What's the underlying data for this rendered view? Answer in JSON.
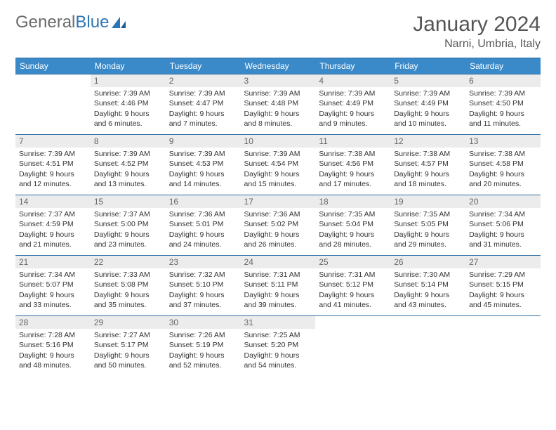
{
  "logo": {
    "text1": "General",
    "text2": "Blue"
  },
  "title": "January 2024",
  "location": "Narni, Umbria, Italy",
  "columns": [
    "Sunday",
    "Monday",
    "Tuesday",
    "Wednesday",
    "Thursday",
    "Friday",
    "Saturday"
  ],
  "colors": {
    "header_bg": "#3a8ac9",
    "border": "#2e6da4",
    "daynum_bg": "#ececec",
    "logo_gray": "#6a6a6a",
    "logo_blue": "#2e75b6"
  },
  "weeks": [
    [
      {
        "n": "",
        "lines": []
      },
      {
        "n": "1",
        "lines": [
          "Sunrise: 7:39 AM",
          "Sunset: 4:46 PM",
          "Daylight: 9 hours",
          "and 6 minutes."
        ]
      },
      {
        "n": "2",
        "lines": [
          "Sunrise: 7:39 AM",
          "Sunset: 4:47 PM",
          "Daylight: 9 hours",
          "and 7 minutes."
        ]
      },
      {
        "n": "3",
        "lines": [
          "Sunrise: 7:39 AM",
          "Sunset: 4:48 PM",
          "Daylight: 9 hours",
          "and 8 minutes."
        ]
      },
      {
        "n": "4",
        "lines": [
          "Sunrise: 7:39 AM",
          "Sunset: 4:49 PM",
          "Daylight: 9 hours",
          "and 9 minutes."
        ]
      },
      {
        "n": "5",
        "lines": [
          "Sunrise: 7:39 AM",
          "Sunset: 4:49 PM",
          "Daylight: 9 hours",
          "and 10 minutes."
        ]
      },
      {
        "n": "6",
        "lines": [
          "Sunrise: 7:39 AM",
          "Sunset: 4:50 PM",
          "Daylight: 9 hours",
          "and 11 minutes."
        ]
      }
    ],
    [
      {
        "n": "7",
        "lines": [
          "Sunrise: 7:39 AM",
          "Sunset: 4:51 PM",
          "Daylight: 9 hours",
          "and 12 minutes."
        ]
      },
      {
        "n": "8",
        "lines": [
          "Sunrise: 7:39 AM",
          "Sunset: 4:52 PM",
          "Daylight: 9 hours",
          "and 13 minutes."
        ]
      },
      {
        "n": "9",
        "lines": [
          "Sunrise: 7:39 AM",
          "Sunset: 4:53 PM",
          "Daylight: 9 hours",
          "and 14 minutes."
        ]
      },
      {
        "n": "10",
        "lines": [
          "Sunrise: 7:39 AM",
          "Sunset: 4:54 PM",
          "Daylight: 9 hours",
          "and 15 minutes."
        ]
      },
      {
        "n": "11",
        "lines": [
          "Sunrise: 7:38 AM",
          "Sunset: 4:56 PM",
          "Daylight: 9 hours",
          "and 17 minutes."
        ]
      },
      {
        "n": "12",
        "lines": [
          "Sunrise: 7:38 AM",
          "Sunset: 4:57 PM",
          "Daylight: 9 hours",
          "and 18 minutes."
        ]
      },
      {
        "n": "13",
        "lines": [
          "Sunrise: 7:38 AM",
          "Sunset: 4:58 PM",
          "Daylight: 9 hours",
          "and 20 minutes."
        ]
      }
    ],
    [
      {
        "n": "14",
        "lines": [
          "Sunrise: 7:37 AM",
          "Sunset: 4:59 PM",
          "Daylight: 9 hours",
          "and 21 minutes."
        ]
      },
      {
        "n": "15",
        "lines": [
          "Sunrise: 7:37 AM",
          "Sunset: 5:00 PM",
          "Daylight: 9 hours",
          "and 23 minutes."
        ]
      },
      {
        "n": "16",
        "lines": [
          "Sunrise: 7:36 AM",
          "Sunset: 5:01 PM",
          "Daylight: 9 hours",
          "and 24 minutes."
        ]
      },
      {
        "n": "17",
        "lines": [
          "Sunrise: 7:36 AM",
          "Sunset: 5:02 PM",
          "Daylight: 9 hours",
          "and 26 minutes."
        ]
      },
      {
        "n": "18",
        "lines": [
          "Sunrise: 7:35 AM",
          "Sunset: 5:04 PM",
          "Daylight: 9 hours",
          "and 28 minutes."
        ]
      },
      {
        "n": "19",
        "lines": [
          "Sunrise: 7:35 AM",
          "Sunset: 5:05 PM",
          "Daylight: 9 hours",
          "and 29 minutes."
        ]
      },
      {
        "n": "20",
        "lines": [
          "Sunrise: 7:34 AM",
          "Sunset: 5:06 PM",
          "Daylight: 9 hours",
          "and 31 minutes."
        ]
      }
    ],
    [
      {
        "n": "21",
        "lines": [
          "Sunrise: 7:34 AM",
          "Sunset: 5:07 PM",
          "Daylight: 9 hours",
          "and 33 minutes."
        ]
      },
      {
        "n": "22",
        "lines": [
          "Sunrise: 7:33 AM",
          "Sunset: 5:08 PM",
          "Daylight: 9 hours",
          "and 35 minutes."
        ]
      },
      {
        "n": "23",
        "lines": [
          "Sunrise: 7:32 AM",
          "Sunset: 5:10 PM",
          "Daylight: 9 hours",
          "and 37 minutes."
        ]
      },
      {
        "n": "24",
        "lines": [
          "Sunrise: 7:31 AM",
          "Sunset: 5:11 PM",
          "Daylight: 9 hours",
          "and 39 minutes."
        ]
      },
      {
        "n": "25",
        "lines": [
          "Sunrise: 7:31 AM",
          "Sunset: 5:12 PM",
          "Daylight: 9 hours",
          "and 41 minutes."
        ]
      },
      {
        "n": "26",
        "lines": [
          "Sunrise: 7:30 AM",
          "Sunset: 5:14 PM",
          "Daylight: 9 hours",
          "and 43 minutes."
        ]
      },
      {
        "n": "27",
        "lines": [
          "Sunrise: 7:29 AM",
          "Sunset: 5:15 PM",
          "Daylight: 9 hours",
          "and 45 minutes."
        ]
      }
    ],
    [
      {
        "n": "28",
        "lines": [
          "Sunrise: 7:28 AM",
          "Sunset: 5:16 PM",
          "Daylight: 9 hours",
          "and 48 minutes."
        ]
      },
      {
        "n": "29",
        "lines": [
          "Sunrise: 7:27 AM",
          "Sunset: 5:17 PM",
          "Daylight: 9 hours",
          "and 50 minutes."
        ]
      },
      {
        "n": "30",
        "lines": [
          "Sunrise: 7:26 AM",
          "Sunset: 5:19 PM",
          "Daylight: 9 hours",
          "and 52 minutes."
        ]
      },
      {
        "n": "31",
        "lines": [
          "Sunrise: 7:25 AM",
          "Sunset: 5:20 PM",
          "Daylight: 9 hours",
          "and 54 minutes."
        ]
      },
      {
        "n": "",
        "lines": []
      },
      {
        "n": "",
        "lines": []
      },
      {
        "n": "",
        "lines": []
      }
    ]
  ]
}
